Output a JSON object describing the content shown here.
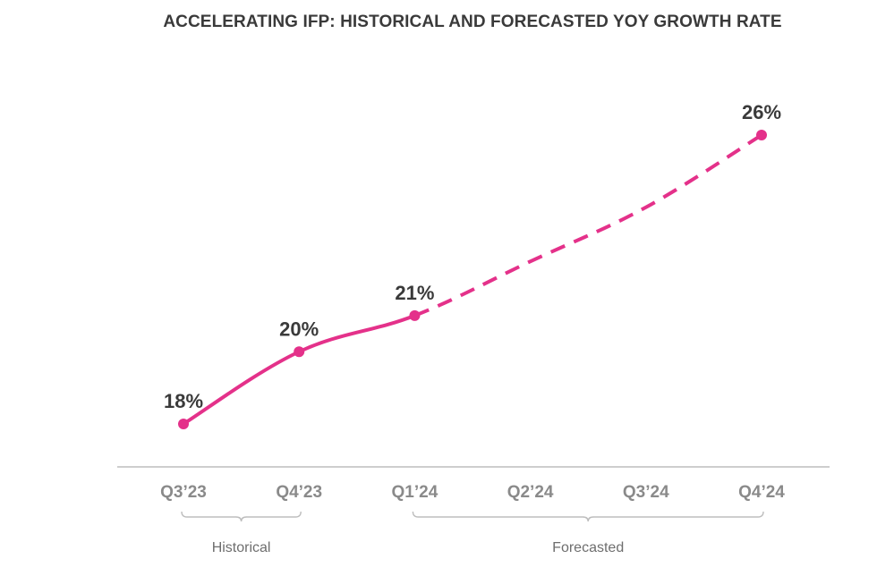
{
  "chart_data": {
    "type": "line",
    "title": "ACCELERATING IFP: HISTORICAL AND FORECASTED YOY GROWTH RATE",
    "categories": [
      "Q3’23",
      "Q4’23",
      "Q1’24",
      "Q2’24",
      "Q3’24",
      "Q4’24"
    ],
    "series": [
      {
        "values": [
          18,
          20,
          21,
          22.5,
          24,
          26
        ],
        "data_labels": [
          "18%",
          "20%",
          "21%",
          "",
          "",
          "26%"
        ],
        "historical_until_index": 2
      }
    ],
    "ylim": [
      16,
      27
    ],
    "grid": false,
    "line_color": "#e4318a",
    "axis_color": "#bdbdbd",
    "groups": [
      {
        "label": "Historical",
        "from": 0,
        "to": 1
      },
      {
        "label": "Forecasted",
        "from": 2,
        "to": 5
      }
    ]
  }
}
